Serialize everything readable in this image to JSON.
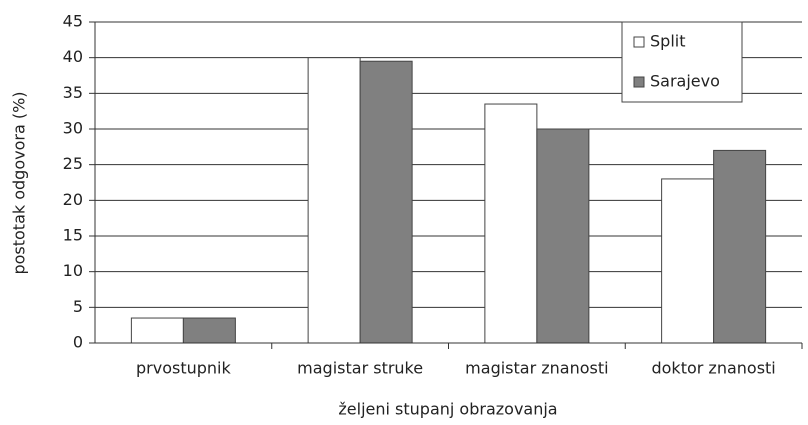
{
  "chart_data": {
    "type": "bar",
    "y_label": "postotak odgovora (%)",
    "x_label": "željeni stupanj obrazovanja",
    "categories": [
      "prvostupnik",
      "magistar struke",
      "magistar znanosti",
      "doktor znanosti"
    ],
    "series": [
      {
        "name": "Split",
        "color": "#ffffff",
        "values": [
          3.5,
          40,
          33.5,
          23
        ]
      },
      {
        "name": "Sarajevo",
        "color": "#808080",
        "values": [
          3.5,
          39.5,
          30,
          27
        ]
      }
    ],
    "ylim": [
      0,
      45
    ],
    "yticks": [
      0,
      5,
      10,
      15,
      20,
      25,
      30,
      35,
      40,
      45
    ],
    "grid": true,
    "legend": "upper right"
  }
}
